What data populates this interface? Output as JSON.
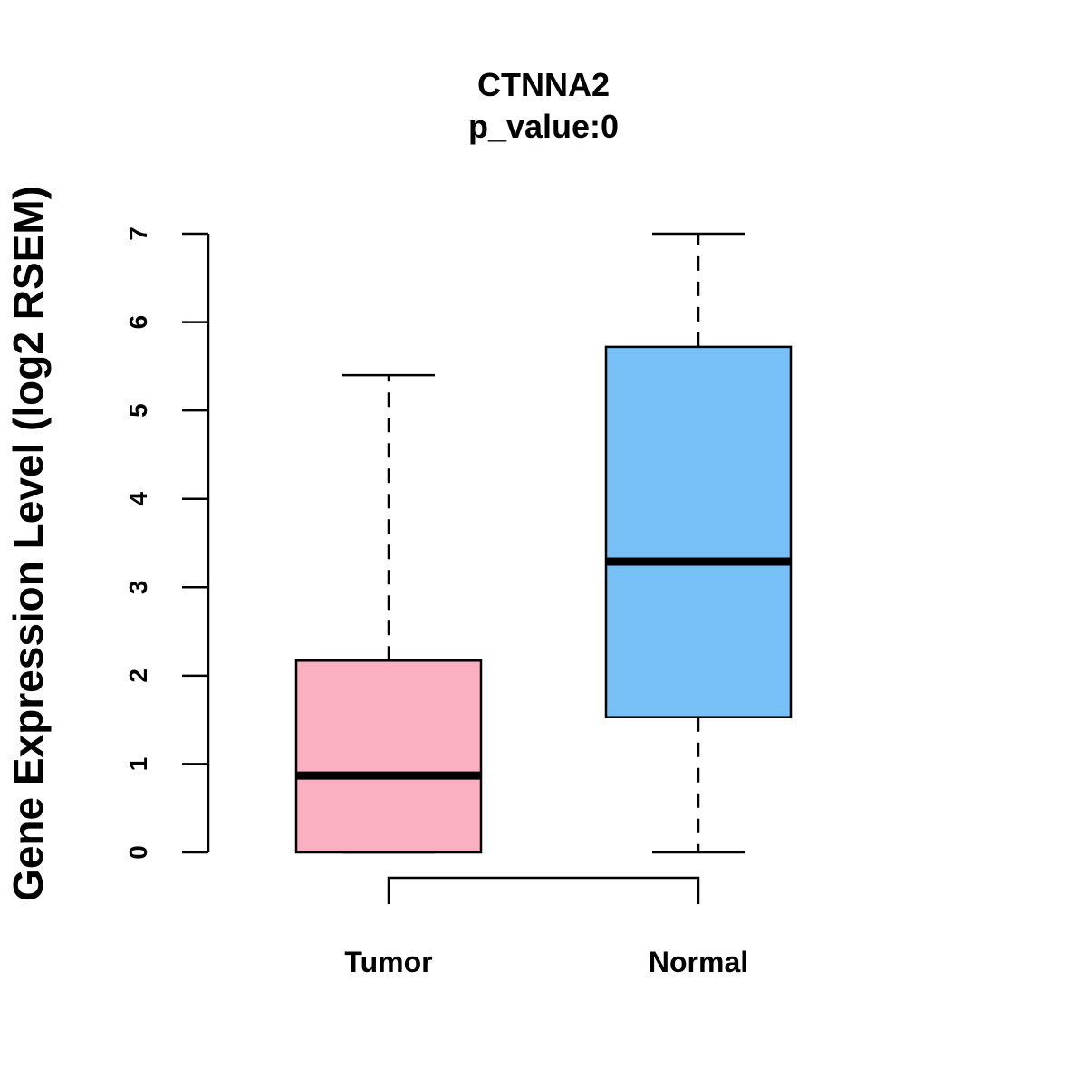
{
  "chart_data": {
    "type": "boxplot",
    "title": "CTNNA2",
    "subtitle": "p_value:0",
    "ylabel": "Gene Expression Level (log2 RSEM)",
    "xlabel": "",
    "ylim": [
      0,
      7
    ],
    "yticks": [
      "0",
      "1",
      "2",
      "3",
      "4",
      "5",
      "6",
      "7"
    ],
    "comparison_bracket": [
      "Tumor",
      "Normal"
    ],
    "series": [
      {
        "name": "Tumor",
        "color": "#FBB0C2",
        "whisker_low": 0,
        "q1": 0,
        "median": 0.87,
        "q3": 2.17,
        "whisker_high": 5.4
      },
      {
        "name": "Normal",
        "color": "#77C0F8",
        "whisker_low": 0,
        "q1": 1.53,
        "median": 3.29,
        "q3": 5.72,
        "whisker_high": 7.0
      }
    ]
  }
}
